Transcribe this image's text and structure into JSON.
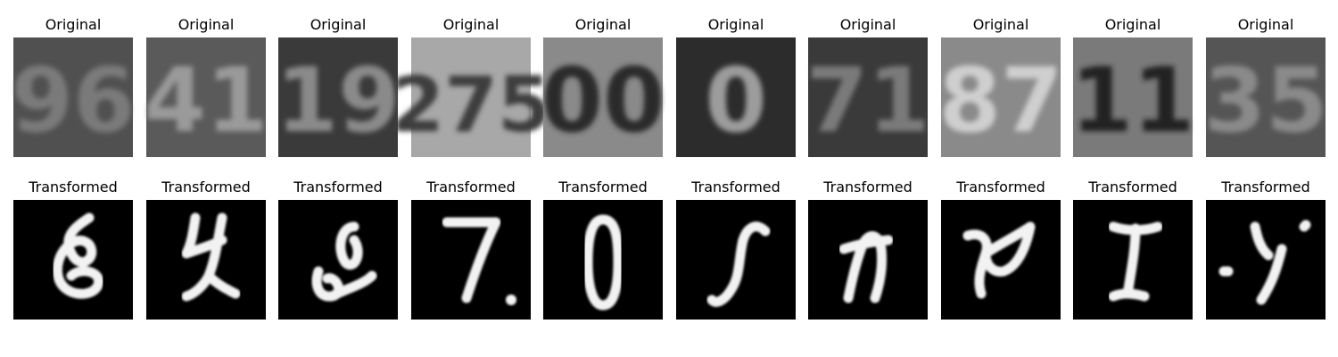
{
  "panels": [
    {
      "orig_label": "Original",
      "trans_label": "Transformed",
      "orig_digits": "96",
      "orig_bg": "#505050",
      "orig_fg": "#7a7a7a",
      "trans_shape": "scribble-a"
    },
    {
      "orig_label": "Original",
      "trans_label": "Transformed",
      "orig_digits": "41",
      "orig_bg": "#5a5a5a",
      "orig_fg": "#9a9a9a",
      "trans_shape": "scribble-b"
    },
    {
      "orig_label": "Original",
      "trans_label": "Transformed",
      "orig_digits": "19",
      "orig_bg": "#3a3a3a",
      "orig_fg": "#8a8a8a",
      "trans_shape": "scribble-c"
    },
    {
      "orig_label": "Original",
      "trans_label": "Transformed",
      "orig_digits": "275",
      "orig_bg": "#a8a8a8",
      "orig_fg": "#3c3c3c",
      "trans_shape": "seven"
    },
    {
      "orig_label": "Original",
      "trans_label": "Transformed",
      "orig_digits": "00",
      "orig_bg": "#8a8a8a",
      "orig_fg": "#2c2c2c",
      "trans_shape": "zero"
    },
    {
      "orig_label": "Original",
      "trans_label": "Transformed",
      "orig_digits": "0",
      "orig_bg": "#2c2c2c",
      "orig_fg": "#9c9c9c",
      "trans_shape": "s-curve"
    },
    {
      "orig_label": "Original",
      "trans_label": "Transformed",
      "orig_digits": "71",
      "orig_bg": "#3a3a3a",
      "orig_fg": "#7a7a7a",
      "trans_shape": "n-shape"
    },
    {
      "orig_label": "Original",
      "trans_label": "Transformed",
      "orig_digits": "87",
      "orig_bg": "#8a8a8a",
      "orig_fg": "#cfcfcf",
      "trans_shape": "scribble-d"
    },
    {
      "orig_label": "Original",
      "trans_label": "Transformed",
      "orig_digits": "11",
      "orig_bg": "#7a7a7a",
      "orig_fg": "#222222",
      "trans_shape": "i-shape"
    },
    {
      "orig_label": "Original",
      "trans_label": "Transformed",
      "orig_digits": "35",
      "orig_bg": "#555555",
      "orig_fg": "#8a8a8a",
      "trans_shape": "y-shape"
    }
  ]
}
